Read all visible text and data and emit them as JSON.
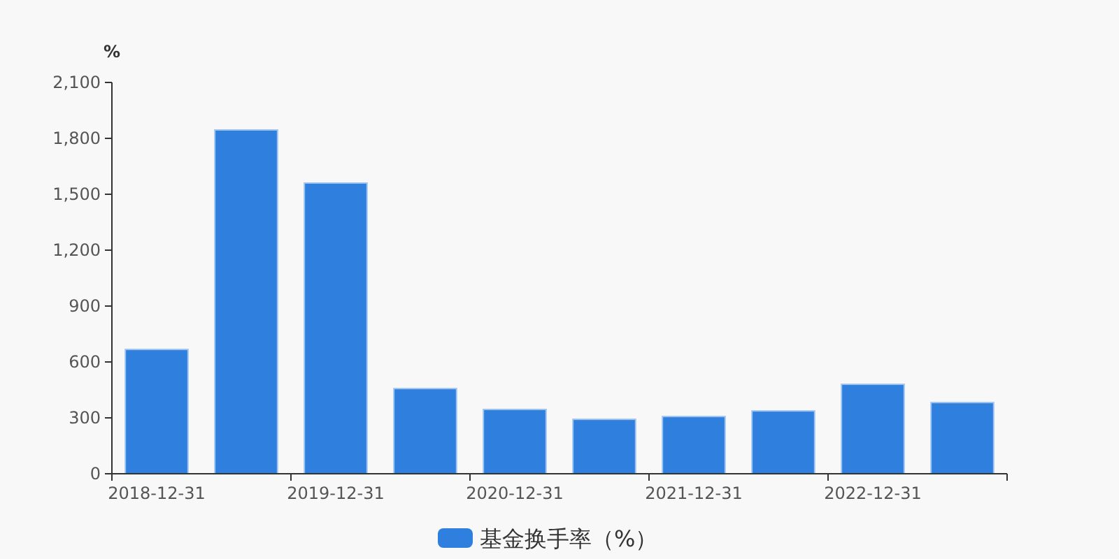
{
  "chart_data": {
    "type": "bar",
    "ylabel": "%",
    "categories": [
      "2018-12-31",
      null,
      "2019-12-31",
      null,
      "2020-12-31",
      null,
      "2021-12-31",
      null,
      "2022-12-31",
      null
    ],
    "series": [
      {
        "name": "基金换手率（%）",
        "color": "#2e7fde",
        "values": [
          667,
          1845,
          1560,
          457,
          345,
          292,
          307,
          337,
          480,
          382
        ]
      }
    ],
    "ylim": [
      0,
      2100
    ],
    "yticks": [
      {
        "value": 0,
        "label": "0"
      },
      {
        "value": 300,
        "label": "300"
      },
      {
        "value": 600,
        "label": "600"
      },
      {
        "value": 900,
        "label": "900"
      },
      {
        "value": 1200,
        "label": "1,200"
      },
      {
        "value": 1500,
        "label": "1,500"
      },
      {
        "value": 1800,
        "label": "1,800"
      },
      {
        "value": 2100,
        "label": "2,100"
      }
    ],
    "grid": false,
    "legend": "bottom"
  }
}
